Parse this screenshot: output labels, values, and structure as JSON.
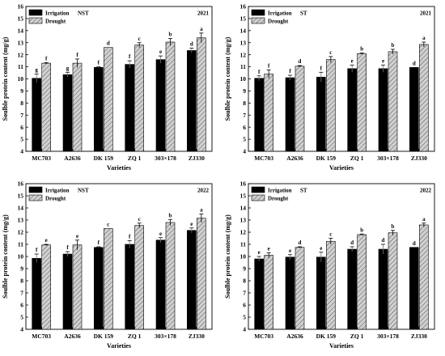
{
  "chart_data": [
    {
      "type": "bar",
      "group": "NST",
      "year": "2021",
      "categories": [
        "MC703",
        "A2636",
        "DK 159",
        "ZQ 1",
        "303×178",
        "ZJ330"
      ],
      "xlabel": "Varieties",
      "ylabel": "Soulble protein content (mg/g)",
      "ylim": [
        4,
        16
      ],
      "yticks": [
        4,
        5,
        6,
        7,
        8,
        9,
        10,
        11,
        12,
        13,
        14,
        15,
        16
      ],
      "series": [
        {
          "name": "Irrigation",
          "values": [
            10.05,
            10.35,
            10.95,
            11.2,
            11.6,
            12.35
          ],
          "errors": [
            0.35,
            0.2,
            0.05,
            0.3,
            0.3,
            0.2
          ],
          "letters": [
            "g",
            "g",
            "f",
            "f",
            "e",
            "d"
          ]
        },
        {
          "name": "Drought",
          "values": [
            11.3,
            11.3,
            12.6,
            12.8,
            13.05,
            13.4
          ],
          "errors": [
            0.05,
            0.35,
            0.0,
            0.2,
            0.3,
            0.4
          ],
          "letters": [
            "f",
            "f",
            "d",
            "c",
            "b",
            "a"
          ]
        }
      ]
    },
    {
      "type": "bar",
      "group": "ST",
      "year": "2021",
      "categories": [
        "MC703",
        "A2636",
        "DK 159",
        "ZQ 1",
        "303×178",
        "ZJ330"
      ],
      "xlabel": "Varieties",
      "ylabel": "Soulble protein content (mg/g)",
      "ylim": [
        4,
        16
      ],
      "yticks": [
        4,
        5,
        6,
        7,
        8,
        9,
        10,
        11,
        12,
        13,
        14,
        15,
        16
      ],
      "series": [
        {
          "name": "Irrigation",
          "values": [
            10.05,
            10.1,
            10.15,
            10.85,
            10.85,
            10.95
          ],
          "errors": [
            0.2,
            0.2,
            0.4,
            0.3,
            0.3,
            0.0
          ],
          "letters": [
            "f",
            "f",
            "f",
            "e",
            "e",
            "d"
          ]
        },
        {
          "name": "Drought",
          "values": [
            10.4,
            11.05,
            11.6,
            12.1,
            12.25,
            12.85
          ],
          "errors": [
            0.35,
            0.05,
            0.25,
            0.05,
            0.2,
            0.2
          ],
          "letters": [
            "f",
            "d",
            "c",
            "b",
            "b",
            "a"
          ]
        }
      ]
    },
    {
      "type": "bar",
      "group": "NST",
      "year": "2022",
      "categories": [
        "MC703",
        "A2636",
        "DK 159",
        "ZQ 1",
        "303×178",
        "ZJ330"
      ],
      "xlabel": "Varieties",
      "ylabel": "Soulble protein content (mg/g)",
      "ylim": [
        4,
        16
      ],
      "yticks": [
        4,
        5,
        6,
        7,
        8,
        9,
        10,
        11,
        12,
        13,
        14,
        15,
        16
      ],
      "series": [
        {
          "name": "Irrigation",
          "values": [
            9.85,
            10.2,
            10.75,
            11.0,
            11.35,
            12.15
          ],
          "errors": [
            0.35,
            0.2,
            0.05,
            0.3,
            0.2,
            0.2
          ],
          "letters": [
            "f",
            "f",
            "f",
            "f",
            "e",
            "e"
          ]
        },
        {
          "name": "Drought",
          "values": [
            10.95,
            10.95,
            12.3,
            12.55,
            12.8,
            13.15
          ],
          "errors": [
            0.05,
            0.4,
            0.0,
            0.2,
            0.25,
            0.35
          ],
          "letters": [
            "e",
            "e",
            "c",
            "c",
            "b",
            "a"
          ]
        }
      ]
    },
    {
      "type": "bar",
      "group": "ST",
      "year": "2022",
      "categories": [
        "MC703",
        "A2636",
        "DK 159",
        "ZQ 1",
        "303×178",
        "ZJ330"
      ],
      "xlabel": "Varieties",
      "ylabel": "Soulble protein content (mg/g)",
      "ylim": [
        4,
        16
      ],
      "yticks": [
        4,
        5,
        6,
        7,
        8,
        9,
        10,
        11,
        12,
        13,
        14,
        15,
        16
      ],
      "series": [
        {
          "name": "Irrigation",
          "values": [
            9.8,
            9.95,
            9.95,
            10.6,
            10.6,
            10.75
          ],
          "errors": [
            0.2,
            0.2,
            0.4,
            0.2,
            0.4,
            0.0
          ],
          "letters": [
            "e",
            "e",
            "e",
            "d",
            "d",
            "d"
          ]
        },
        {
          "name": "Drought",
          "values": [
            10.1,
            10.75,
            11.25,
            11.8,
            11.95,
            12.6
          ],
          "errors": [
            0.2,
            0.05,
            0.25,
            0.05,
            0.2,
            0.15
          ],
          "letters": [
            "e",
            "d",
            "c",
            "b",
            "b",
            "a"
          ]
        }
      ]
    }
  ],
  "colors": {
    "irrigation": "#000000",
    "drought": "#c8c8c8",
    "axis": "#000000"
  }
}
